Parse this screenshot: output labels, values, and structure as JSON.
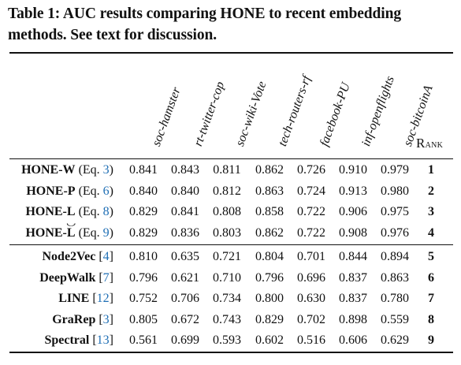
{
  "caption": "Table 1: AUC results comparing HONE to recent embedding methods. See text for discussion.",
  "columns": [
    "soc-hamster",
    "rt-twitter-cop",
    "soc-wiki-Vote",
    "tech-routers-rf",
    "facebook-PU",
    "inf-openflights",
    "soc-bitcoinA"
  ],
  "rank_header": {
    "first": "R",
    "rest": "ank"
  },
  "group1": [
    {
      "name": "HONE-W",
      "pre": " (Eq. ",
      "cite": "3",
      "post": ")",
      "values": [
        "0.841",
        "0.843",
        "0.811",
        "0.862",
        "0.726",
        "0.910",
        "0.979"
      ],
      "rank": "1"
    },
    {
      "name": "HONE-P",
      "pre": " (Eq. ",
      "cite": "6",
      "post": ")",
      "values": [
        "0.840",
        "0.840",
        "0.812",
        "0.863",
        "0.724",
        "0.913",
        "0.980"
      ],
      "rank": "2"
    },
    {
      "name": "HONE-L",
      "pre": " (Eq. ",
      "cite": "8",
      "post": ")",
      "values": [
        "0.829",
        "0.841",
        "0.808",
        "0.858",
        "0.722",
        "0.906",
        "0.975"
      ],
      "rank": "3"
    },
    {
      "name": "HONE-",
      "hat": "L",
      "pre": " (Eq. ",
      "cite": "9",
      "post": ")",
      "values": [
        "0.829",
        "0.836",
        "0.803",
        "0.862",
        "0.722",
        "0.908",
        "0.976"
      ],
      "rank": "4"
    }
  ],
  "group2": [
    {
      "name": "Node2Vec",
      "pre": " [",
      "cite": "4",
      "post": "]",
      "values": [
        "0.810",
        "0.635",
        "0.721",
        "0.804",
        "0.701",
        "0.844",
        "0.894"
      ],
      "rank": "5"
    },
    {
      "name": "DeepWalk",
      "pre": " [",
      "cite": "7",
      "post": "]",
      "values": [
        "0.796",
        "0.621",
        "0.710",
        "0.796",
        "0.696",
        "0.837",
        "0.863"
      ],
      "rank": "6"
    },
    {
      "name": "LINE",
      "pre": " [",
      "cite": "12",
      "post": "]",
      "values": [
        "0.752",
        "0.706",
        "0.734",
        "0.800",
        "0.630",
        "0.837",
        "0.780"
      ],
      "rank": "7"
    },
    {
      "name": "GraRep",
      "pre": " [",
      "cite": "3",
      "post": "]",
      "values": [
        "0.805",
        "0.672",
        "0.743",
        "0.829",
        "0.702",
        "0.898",
        "0.559"
      ],
      "rank": "8"
    },
    {
      "name": "Spectral",
      "pre": " [",
      "cite": "13",
      "post": "]",
      "values": [
        "0.561",
        "0.699",
        "0.593",
        "0.602",
        "0.516",
        "0.606",
        "0.629"
      ],
      "rank": "9"
    }
  ]
}
